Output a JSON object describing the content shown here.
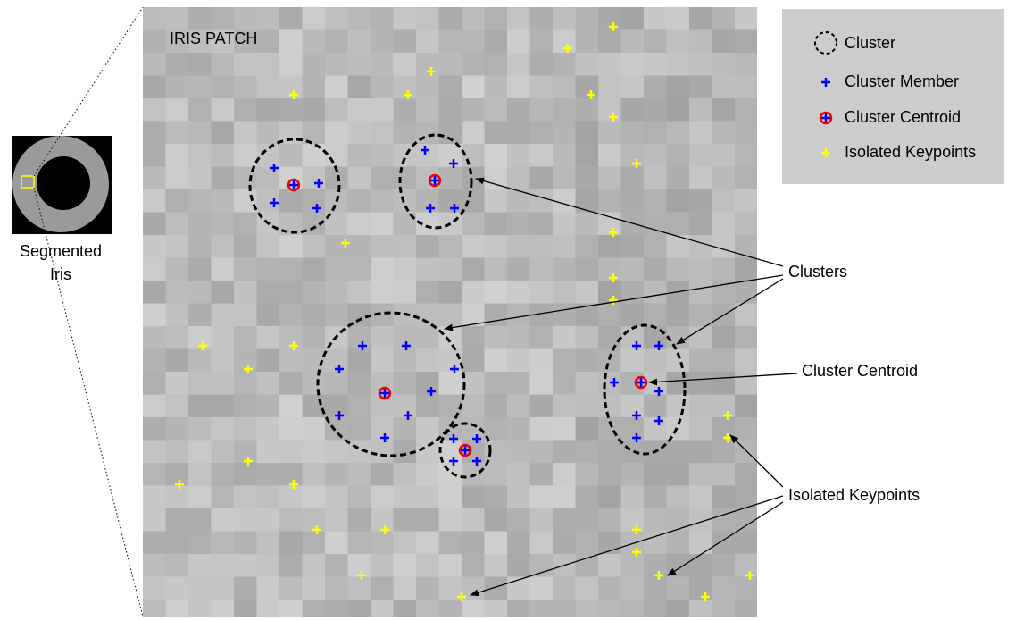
{
  "left": {
    "label": [
      "Segmented",
      "Iris"
    ]
  },
  "patch": {
    "title": "IRIS PATCH"
  },
  "legend": {
    "items": [
      "Cluster",
      "Cluster Member",
      "Cluster Centroid",
      "Isolated Keypoints"
    ]
  },
  "annotations": [
    "Clusters",
    "Cluster Centroid",
    "Isolated Keypoints"
  ]
}
